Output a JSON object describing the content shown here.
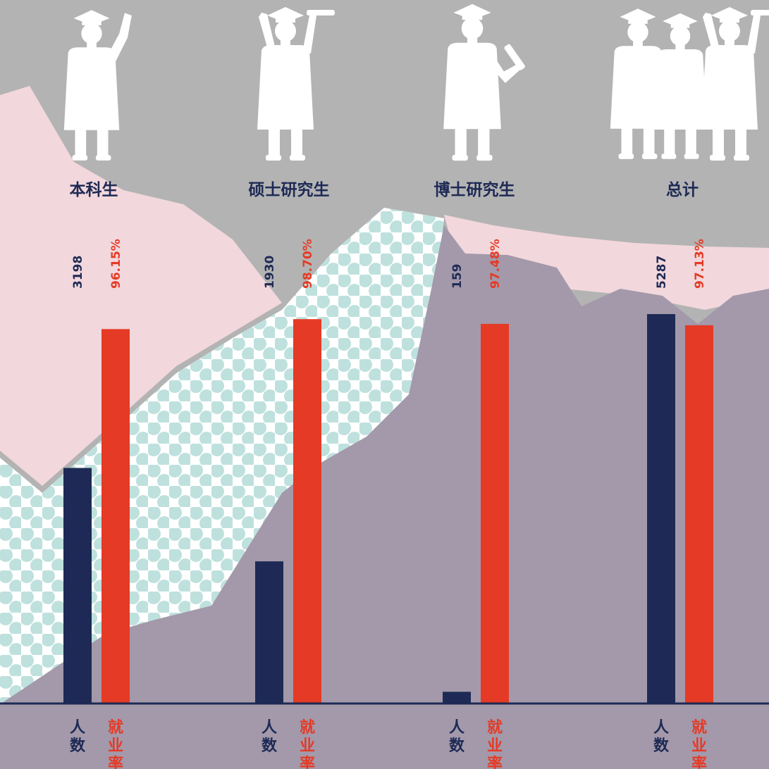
{
  "colors": {
    "background": "#b3b3b3",
    "count_bar": "#1e2a55",
    "rate_bar": "#e53a25",
    "pink": "#f2d7dc",
    "mauve": "#a399aa",
    "dots": "#bfe1de"
  },
  "icons": [
    "graduate-waving-icon",
    "graduate-cap-raised-icon",
    "graduate-diploma-icon",
    "graduates-group-icon"
  ],
  "chart_data": {
    "type": "bar",
    "categories": [
      "本科生",
      "硕士研究生",
      "博士研究生",
      "总计"
    ],
    "series": [
      {
        "name": "人数",
        "values": [
          3198,
          1930,
          159,
          5287
        ]
      },
      {
        "name": "就业率",
        "values": [
          96.15,
          98.7,
          97.48,
          97.13
        ]
      }
    ],
    "value_labels": {
      "count": [
        "3198",
        "1930",
        "159",
        "5287"
      ],
      "rate": [
        "96.15%",
        "98.70%",
        "97.48%",
        "97.13%"
      ]
    },
    "axis_labels": {
      "count": "人数",
      "rate": "就业率"
    },
    "count_scale": [
      0,
      5287
    ],
    "rate_scale": [
      0,
      100
    ],
    "grid": false,
    "legend": "none"
  }
}
